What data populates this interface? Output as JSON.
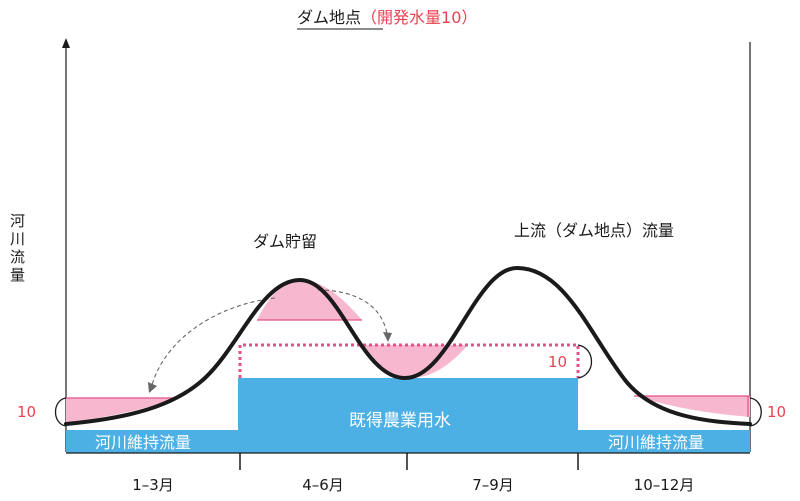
{
  "title": {
    "main": "ダム地点",
    "paren_open": "（",
    "sub": "開発水量10",
    "paren_close": "）"
  },
  "y_axis_label": [
    "河",
    "川",
    "流",
    "量"
  ],
  "labels": {
    "dam_storage": "ダム貯留",
    "upstream_flow": "上流（ダム地点）流量",
    "existing_agri": "既得農業用水",
    "maintenance_left": "河川維持流量",
    "maintenance_right": "河川維持流量",
    "ten_left": "10",
    "ten_right": "10",
    "ten_mid": "10"
  },
  "periods": [
    "1–3月",
    "4–6月",
    "7–9月",
    "10–12月"
  ],
  "colors": {
    "water_blue": "#4cb0e4",
    "pink_fill": "#f7b8cf",
    "pink_line": "#e5508a",
    "red_text": "#e8424f",
    "curve": "#1a1a1a"
  }
}
